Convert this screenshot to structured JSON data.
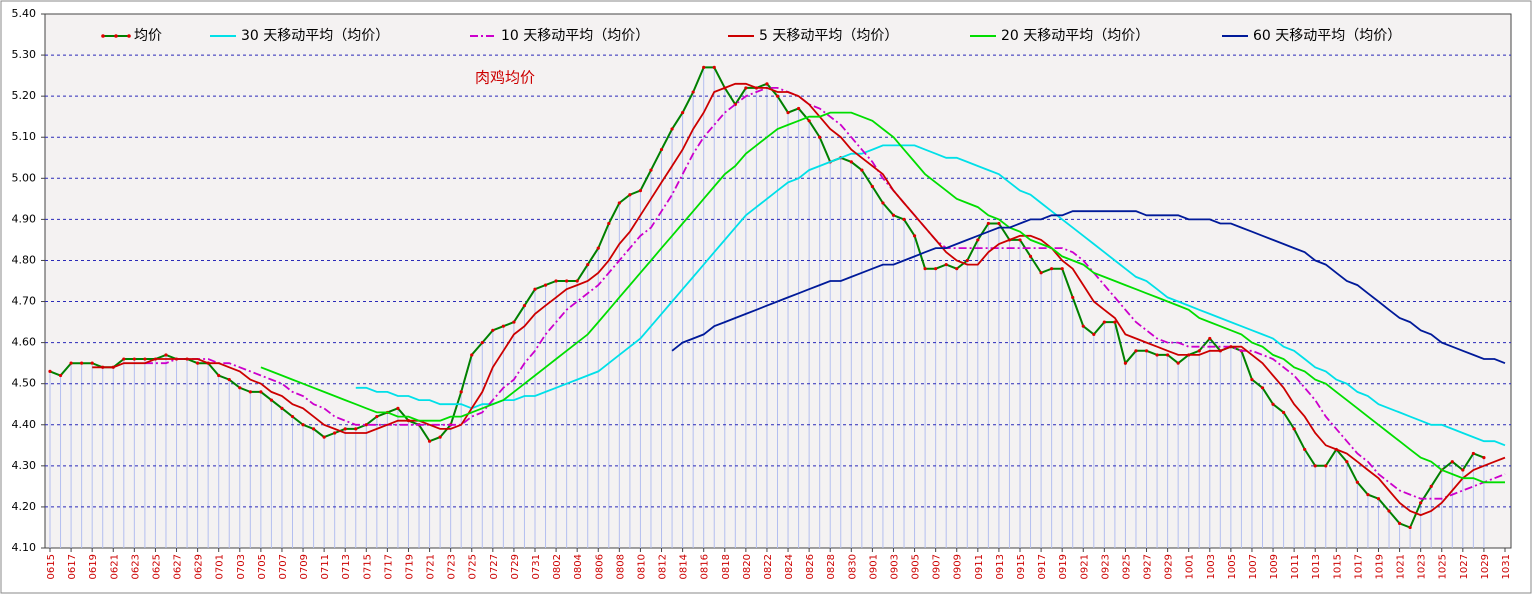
{
  "chart_data": {
    "type": "line",
    "annotations": [
      "肉鸡均价"
    ],
    "categories": [
      "0615",
      null,
      "0617",
      null,
      "0619",
      null,
      "0621",
      null,
      "0623",
      null,
      "0625",
      null,
      "0627",
      null,
      "0629",
      null,
      "0701",
      null,
      "0703",
      null,
      "0705",
      null,
      "0707",
      null,
      "0709",
      null,
      "0711",
      null,
      "0713",
      null,
      "0715",
      null,
      "0717",
      null,
      "0719",
      null,
      "0721",
      null,
      "0723",
      null,
      "0725",
      null,
      "0727",
      null,
      "0729",
      null,
      "0731",
      null,
      "0802",
      null,
      "0804",
      null,
      "0806",
      null,
      "0808",
      null,
      "0810",
      null,
      "0812",
      null,
      "0814",
      null,
      "0816",
      null,
      "0818",
      null,
      "0820",
      null,
      "0822",
      null,
      "0824",
      null,
      "0826",
      null,
      "0828",
      null,
      "0830",
      null,
      "0901",
      null,
      "0903",
      null,
      "0905",
      null,
      "0907",
      null,
      "0909",
      null,
      "0911",
      null,
      "0913",
      null,
      "0915",
      null,
      "0917",
      null,
      "0919",
      null,
      "0921",
      null,
      "0923",
      null,
      "0925",
      null,
      "0927",
      null,
      "0929",
      null,
      "1001",
      null,
      "1003",
      null,
      "1005",
      null,
      "1007",
      null,
      "1009",
      null,
      "1011",
      null,
      "1013",
      null,
      "1015",
      null,
      "1017",
      null,
      "1019",
      null,
      "1021",
      null,
      "1023",
      null,
      "1025",
      null,
      "1027",
      null,
      "1029",
      null,
      "1031"
    ],
    "series": [
      {
        "name": "均价",
        "color": "#008000",
        "marker_color": "#e00000",
        "markers": true,
        "fill_hatch": "#b4bff0",
        "values": [
          4.53,
          4.52,
          4.55,
          4.55,
          4.55,
          4.54,
          4.54,
          4.56,
          4.56,
          4.56,
          4.56,
          4.57,
          4.56,
          4.56,
          4.55,
          4.55,
          4.52,
          4.51,
          4.49,
          4.48,
          4.48,
          4.46,
          4.44,
          4.42,
          4.4,
          4.39,
          4.37,
          4.38,
          4.39,
          4.39,
          4.4,
          4.42,
          4.43,
          4.44,
          4.41,
          4.4,
          4.36,
          4.37,
          4.4,
          4.48,
          4.57,
          4.6,
          4.63,
          4.64,
          4.65,
          4.69,
          4.73,
          4.74,
          4.75,
          4.75,
          4.75,
          4.79,
          4.83,
          4.89,
          4.94,
          4.96,
          4.97,
          5.02,
          5.07,
          5.12,
          5.16,
          5.21,
          5.27,
          5.27,
          5.22,
          5.18,
          5.22,
          5.22,
          5.23,
          5.2,
          5.16,
          5.17,
          5.14,
          5.1,
          5.04,
          5.05,
          5.04,
          5.02,
          4.98,
          4.94,
          4.91,
          4.9,
          4.86,
          4.78,
          4.78,
          4.79,
          4.78,
          4.8,
          4.85,
          4.89,
          4.89,
          4.85,
          4.85,
          4.81,
          4.77,
          4.78,
          4.78,
          4.71,
          4.64,
          4.62,
          4.65,
          4.65,
          4.55,
          4.58,
          4.58,
          4.57,
          4.57,
          4.55,
          4.57,
          4.58,
          4.61,
          4.58,
          4.59,
          4.58,
          4.51,
          4.49,
          4.45,
          4.43,
          4.39,
          4.34,
          4.3,
          4.3,
          4.34,
          4.31,
          4.26,
          4.23,
          4.22,
          4.19,
          4.16,
          4.15,
          4.21,
          4.25,
          4.29,
          4.31,
          4.29,
          4.33,
          4.32,
          null,
          null
        ]
      },
      {
        "name": "30 天移动平均（均价）",
        "color": "#00e0e8",
        "values": [
          null,
          null,
          null,
          null,
          null,
          null,
          null,
          null,
          null,
          null,
          null,
          null,
          null,
          null,
          null,
          null,
          null,
          null,
          null,
          null,
          null,
          null,
          null,
          null,
          null,
          null,
          null,
          null,
          null,
          4.49,
          4.49,
          4.48,
          4.48,
          4.47,
          4.47,
          4.46,
          4.46,
          4.45,
          4.45,
          4.45,
          4.44,
          4.45,
          4.45,
          4.46,
          4.46,
          4.47,
          4.47,
          4.48,
          4.49,
          4.5,
          4.51,
          4.52,
          4.53,
          4.55,
          4.57,
          4.59,
          4.61,
          4.64,
          4.67,
          4.7,
          4.73,
          4.76,
          4.79,
          4.82,
          4.85,
          4.88,
          4.91,
          4.93,
          4.95,
          4.97,
          4.99,
          5.0,
          5.02,
          5.03,
          5.04,
          5.05,
          5.06,
          5.06,
          5.07,
          5.08,
          5.08,
          5.08,
          5.08,
          5.07,
          5.06,
          5.05,
          5.05,
          5.04,
          5.03,
          5.02,
          5.01,
          4.99,
          4.97,
          4.96,
          4.94,
          4.92,
          4.9,
          4.88,
          4.86,
          4.84,
          4.82,
          4.8,
          4.78,
          4.76,
          4.75,
          4.73,
          4.71,
          4.7,
          4.69,
          4.68,
          4.67,
          4.66,
          4.65,
          4.64,
          4.63,
          4.62,
          4.61,
          4.59,
          4.58,
          4.56,
          4.54,
          4.53,
          4.51,
          4.5,
          4.48,
          4.47,
          4.45,
          4.44,
          4.43,
          4.42,
          4.41,
          4.4,
          4.4,
          4.39,
          4.38,
          4.37,
          4.36,
          4.36,
          4.35
        ]
      },
      {
        "name": "10 天移动平均（均价）",
        "color": "#cc00cc",
        "line_style": "dashdot",
        "values": [
          null,
          null,
          null,
          null,
          null,
          null,
          null,
          null,
          null,
          4.55,
          4.55,
          4.55,
          4.56,
          4.56,
          4.56,
          4.56,
          4.55,
          4.55,
          4.54,
          4.53,
          4.52,
          4.51,
          4.5,
          4.48,
          4.47,
          4.45,
          4.44,
          4.42,
          4.41,
          4.4,
          4.4,
          4.4,
          4.4,
          4.4,
          4.4,
          4.4,
          4.4,
          4.4,
          4.4,
          4.4,
          4.42,
          4.43,
          4.46,
          4.49,
          4.51,
          4.55,
          4.58,
          4.62,
          4.65,
          4.68,
          4.7,
          4.72,
          4.74,
          4.77,
          4.8,
          4.83,
          4.86,
          4.88,
          4.92,
          4.96,
          5.01,
          5.06,
          5.1,
          5.13,
          5.16,
          5.18,
          5.2,
          5.21,
          5.22,
          5.22,
          5.21,
          5.2,
          5.18,
          5.17,
          5.15,
          5.13,
          5.1,
          5.07,
          5.04,
          5.0,
          4.97,
          4.94,
          4.91,
          4.88,
          4.85,
          4.83,
          4.83,
          4.83,
          4.83,
          4.83,
          4.83,
          4.83,
          4.83,
          4.83,
          4.83,
          4.83,
          4.83,
          4.82,
          4.8,
          4.77,
          4.74,
          4.71,
          4.68,
          4.65,
          4.63,
          4.61,
          4.6,
          4.6,
          4.59,
          4.59,
          4.59,
          4.59,
          4.59,
          4.58,
          4.58,
          4.57,
          4.56,
          4.54,
          4.52,
          4.49,
          4.46,
          4.42,
          4.39,
          4.36,
          4.33,
          4.31,
          4.28,
          4.26,
          4.24,
          4.23,
          4.22,
          4.22,
          4.22,
          4.23,
          4.24,
          4.25,
          4.26,
          4.27,
          4.28
        ]
      },
      {
        "name": "5 天移动平均（均价）",
        "color": "#cc0000",
        "values": [
          null,
          null,
          null,
          null,
          4.54,
          4.54,
          4.54,
          4.55,
          4.55,
          4.55,
          4.56,
          4.56,
          4.56,
          4.56,
          4.56,
          4.55,
          4.55,
          4.54,
          4.53,
          4.51,
          4.5,
          4.48,
          4.47,
          4.45,
          4.44,
          4.42,
          4.4,
          4.39,
          4.38,
          4.38,
          4.38,
          4.39,
          4.4,
          4.41,
          4.41,
          4.41,
          4.4,
          4.39,
          4.39,
          4.4,
          4.44,
          4.48,
          4.54,
          4.58,
          4.62,
          4.64,
          4.67,
          4.69,
          4.71,
          4.73,
          4.74,
          4.75,
          4.77,
          4.8,
          4.84,
          4.87,
          4.91,
          4.95,
          4.99,
          5.03,
          5.07,
          5.12,
          5.16,
          5.21,
          5.22,
          5.23,
          5.23,
          5.22,
          5.22,
          5.21,
          5.21,
          5.2,
          5.18,
          5.15,
          5.12,
          5.1,
          5.07,
          5.05,
          5.03,
          5.01,
          4.97,
          4.94,
          4.91,
          4.88,
          4.85,
          4.82,
          4.8,
          4.79,
          4.79,
          4.82,
          4.84,
          4.85,
          4.86,
          4.86,
          4.85,
          4.83,
          4.8,
          4.78,
          4.74,
          4.7,
          4.68,
          4.66,
          4.62,
          4.61,
          4.6,
          4.59,
          4.58,
          4.57,
          4.57,
          4.57,
          4.58,
          4.58,
          4.59,
          4.59,
          4.57,
          4.55,
          4.52,
          4.49,
          4.45,
          4.42,
          4.38,
          4.35,
          4.34,
          4.33,
          4.31,
          4.29,
          4.27,
          4.24,
          4.21,
          4.19,
          4.18,
          4.19,
          4.21,
          4.24,
          4.27,
          4.29,
          4.3,
          4.31,
          4.32
        ]
      },
      {
        "name": "20 天移动平均（均价）",
        "color": "#00dd00",
        "values": [
          null,
          null,
          null,
          null,
          null,
          null,
          null,
          null,
          null,
          null,
          null,
          null,
          null,
          null,
          null,
          null,
          null,
          null,
          null,
          null,
          4.54,
          4.53,
          4.52,
          4.51,
          4.5,
          4.49,
          4.48,
          4.47,
          4.46,
          4.45,
          4.44,
          4.43,
          4.43,
          4.42,
          4.42,
          4.41,
          4.41,
          4.41,
          4.42,
          4.42,
          4.43,
          4.44,
          4.45,
          4.46,
          4.48,
          4.5,
          4.52,
          4.54,
          4.56,
          4.58,
          4.6,
          4.62,
          4.65,
          4.68,
          4.71,
          4.74,
          4.77,
          4.8,
          4.83,
          4.86,
          4.89,
          4.92,
          4.95,
          4.98,
          5.01,
          5.03,
          5.06,
          5.08,
          5.1,
          5.12,
          5.13,
          5.14,
          5.15,
          5.15,
          5.16,
          5.16,
          5.16,
          5.15,
          5.14,
          5.12,
          5.1,
          5.07,
          5.04,
          5.01,
          4.99,
          4.97,
          4.95,
          4.94,
          4.93,
          4.91,
          4.9,
          4.88,
          4.87,
          4.85,
          4.84,
          4.83,
          4.81,
          4.8,
          4.79,
          4.77,
          4.76,
          4.75,
          4.74,
          4.73,
          4.72,
          4.71,
          4.7,
          4.69,
          4.68,
          4.66,
          4.65,
          4.64,
          4.63,
          4.62,
          4.6,
          4.59,
          4.57,
          4.56,
          4.54,
          4.53,
          4.51,
          4.5,
          4.48,
          4.46,
          4.44,
          4.42,
          4.4,
          4.38,
          4.36,
          4.34,
          4.32,
          4.31,
          4.29,
          4.28,
          4.27,
          4.27,
          4.26,
          4.26,
          4.26
        ]
      },
      {
        "name": "60 天移动平均（均价）",
        "color": "#001a99",
        "values": [
          null,
          null,
          null,
          null,
          null,
          null,
          null,
          null,
          null,
          null,
          null,
          null,
          null,
          null,
          null,
          null,
          null,
          null,
          null,
          null,
          null,
          null,
          null,
          null,
          null,
          null,
          null,
          null,
          null,
          null,
          null,
          null,
          null,
          null,
          null,
          null,
          null,
          null,
          null,
          null,
          null,
          null,
          null,
          null,
          null,
          null,
          null,
          null,
          null,
          null,
          null,
          null,
          null,
          null,
          null,
          null,
          null,
          null,
          null,
          4.58,
          4.6,
          4.61,
          4.62,
          4.64,
          4.65,
          4.66,
          4.67,
          4.68,
          4.69,
          4.7,
          4.71,
          4.72,
          4.73,
          4.74,
          4.75,
          4.75,
          4.76,
          4.77,
          4.78,
          4.79,
          4.79,
          4.8,
          4.81,
          4.82,
          4.83,
          4.83,
          4.84,
          4.85,
          4.86,
          4.87,
          4.88,
          4.88,
          4.89,
          4.9,
          4.9,
          4.91,
          4.91,
          4.92,
          4.92,
          4.92,
          4.92,
          4.92,
          4.92,
          4.92,
          4.91,
          4.91,
          4.91,
          4.91,
          4.9,
          4.9,
          4.9,
          4.89,
          4.89,
          4.88,
          4.87,
          4.86,
          4.85,
          4.84,
          4.83,
          4.82,
          4.8,
          4.79,
          4.77,
          4.75,
          4.74,
          4.72,
          4.7,
          4.68,
          4.66,
          4.65,
          4.63,
          4.62,
          4.6,
          4.59,
          4.58,
          4.57,
          4.56,
          4.56,
          4.55
        ]
      }
    ],
    "ylim": [
      4.1,
      5.4
    ],
    "yticks": [
      {
        "value": 4.1,
        "label": "4.10"
      },
      {
        "value": 4.2,
        "label": "4.20"
      },
      {
        "value": 4.3,
        "label": "4.30"
      },
      {
        "value": 4.4,
        "label": "4.40"
      },
      {
        "value": 4.5,
        "label": "4.50"
      },
      {
        "value": 4.6,
        "label": "4.60"
      },
      {
        "value": 4.7,
        "label": "4.70"
      },
      {
        "value": 4.8,
        "label": "4.80"
      },
      {
        "value": 4.9,
        "label": "4.90"
      },
      {
        "value": 5.0,
        "label": "5.00"
      },
      {
        "value": 5.1,
        "label": "5.10"
      },
      {
        "value": 5.2,
        "label": "5.20"
      },
      {
        "value": 5.3,
        "label": "5.30"
      },
      {
        "value": 5.4,
        "label": "5.40"
      }
    ],
    "grid": true,
    "legend": "top"
  }
}
